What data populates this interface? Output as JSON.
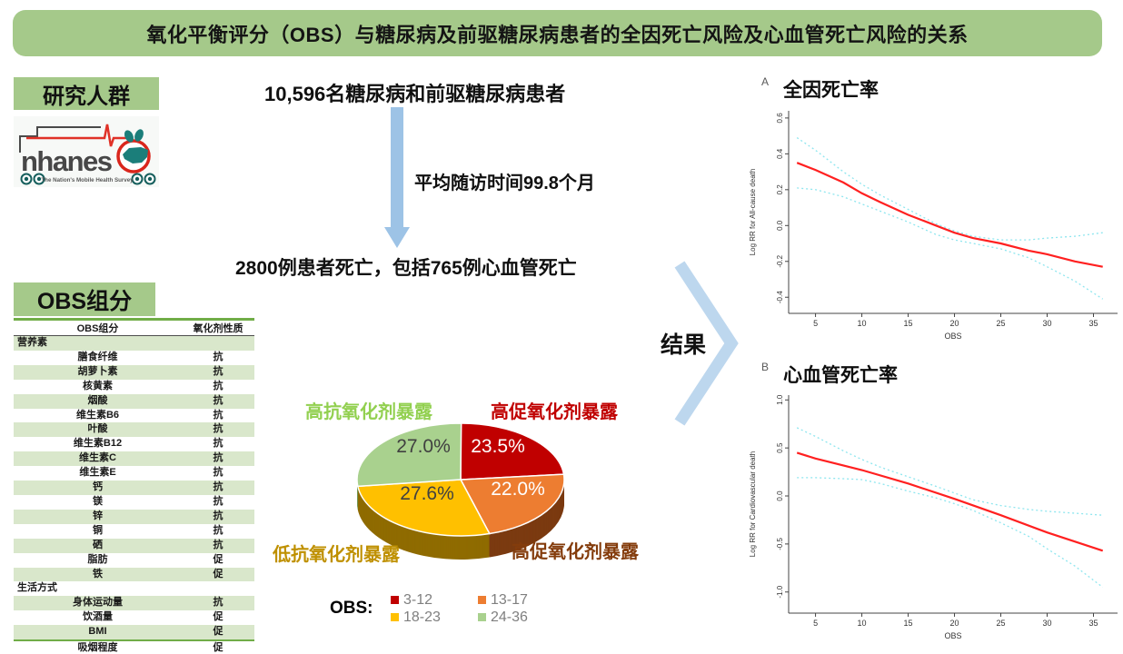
{
  "banner": {
    "title": "氧化平衡评分（OBS）与糖尿病及前驱糖尿病患者的全因死亡风险及心血管死亡风险的关系"
  },
  "colors": {
    "banner_green": "#A5C98A",
    "stripe_green": "#D9E7CB",
    "rule_green": "#70AD47",
    "arrow_blue": "#9DC3E6",
    "chevron_blue": "#BDD7EE",
    "estimate_red": "#FF2020",
    "ci_cyan": "#8EE6EF"
  },
  "left_panel": {
    "study_section_label": "研究人群",
    "obs_section_label": "OBS组分",
    "logo": {
      "name": "nhanes",
      "tagline": "The Nation's Mobile Health Survey"
    },
    "table": {
      "headers": [
        "OBS组分",
        "氧化剂性质"
      ],
      "rows": [
        {
          "label": "营养素",
          "value": "",
          "section": true
        },
        {
          "label": "膳食纤维",
          "value": "抗"
        },
        {
          "label": "胡萝卜素",
          "value": "抗"
        },
        {
          "label": "核黄素",
          "value": "抗"
        },
        {
          "label": "烟酸",
          "value": "抗"
        },
        {
          "label": "维生素B6",
          "value": "抗"
        },
        {
          "label": "叶酸",
          "value": "抗"
        },
        {
          "label": "维生素B12",
          "value": "抗"
        },
        {
          "label": "维生素C",
          "value": "抗"
        },
        {
          "label": "维生素E",
          "value": "抗"
        },
        {
          "label": "钙",
          "value": "抗"
        },
        {
          "label": "镁",
          "value": "抗"
        },
        {
          "label": "锌",
          "value": "抗"
        },
        {
          "label": "铜",
          "value": "抗"
        },
        {
          "label": "硒",
          "value": "抗"
        },
        {
          "label": "脂肪",
          "value": "促"
        },
        {
          "label": "铁",
          "value": "促"
        },
        {
          "label": "生活方式",
          "value": "",
          "section": true
        },
        {
          "label": "身体运动量",
          "value": "抗"
        },
        {
          "label": "饮酒量",
          "value": "促"
        },
        {
          "label": "BMI",
          "value": "促"
        },
        {
          "label": "吸烟程度",
          "value": "促"
        }
      ]
    }
  },
  "flow": {
    "population": "10,596名糖尿病和前驱糖尿病患者",
    "followup": "平均随访时间99.8个月",
    "deaths": "2800例患者死亡，包括765例心血管死亡",
    "result_label": "结果"
  },
  "pie_labels": {
    "top_left": {
      "text": "高抗氧化剂暴露",
      "color": "#92D050"
    },
    "top_right": {
      "text": "高促氧化剂暴露",
      "color": "#C00000"
    },
    "bottom_left": {
      "text": "低抗氧化剂暴露",
      "color": "#BF9000"
    },
    "bottom_right": {
      "text": "高促氧化剂暴露",
      "color": "#843C0C"
    }
  },
  "legend": {
    "title": "OBS:",
    "items": [
      {
        "label": "3-12",
        "color": "#C00000"
      },
      {
        "label": "13-17",
        "color": "#ED7D31"
      },
      {
        "label": "18-23",
        "color": "#FFC000"
      },
      {
        "label": "24-36",
        "color": "#A9D18E"
      }
    ]
  },
  "chart_data": [
    {
      "type": "pie",
      "title": "OBS分组占比",
      "legend_title": "OBS:",
      "slices": [
        {
          "label": "高促氧化剂暴露",
          "obs_range": "3-12",
          "value": 23.5,
          "pct_text": "23.5%",
          "color": "#C00000",
          "side_color": "#7F1500",
          "text_color": "#FFFFFF"
        },
        {
          "label": "高促氧化剂暴露",
          "obs_range": "13-17",
          "value": 22.0,
          "pct_text": "22.0%",
          "color": "#ED7D31",
          "side_color": "#7B3A10",
          "text_color": "#FFFFFF"
        },
        {
          "label": "低抗氧化剂暴露",
          "obs_range": "18-23",
          "value": 27.6,
          "pct_text": "27.6%",
          "color": "#FFC000",
          "side_color": "#8F6B00",
          "text_color": "#404040"
        },
        {
          "label": "高抗氧化剂暴露",
          "obs_range": "24-36",
          "value": 27.0,
          "pct_text": "27.0%",
          "color": "#A9D18E",
          "side_color": "#6E9959",
          "text_color": "#404040"
        }
      ]
    },
    {
      "type": "line",
      "panel": "A",
      "title": "全因死亡率",
      "xlabel": "OBS",
      "ylabel": "Log RR for All-cause death",
      "xlim": [
        2.1,
        37.6
      ],
      "ylim": [
        -0.49,
        0.64
      ],
      "xticks": [
        5,
        10,
        15,
        20,
        25,
        30,
        35
      ],
      "yticks": [
        0.6,
        0.4,
        0.2,
        0.0,
        -0.2,
        -0.4
      ],
      "series": [
        {
          "name": "Log RR estimate",
          "color": "#FF2020",
          "dash": "",
          "width": 2.2,
          "x": [
            3,
            5,
            8,
            10,
            12,
            15,
            18,
            20,
            22,
            25,
            28,
            30,
            33,
            36
          ],
          "y": [
            0.35,
            0.31,
            0.24,
            0.18,
            0.13,
            0.06,
            0.0,
            -0.04,
            -0.07,
            -0.1,
            -0.14,
            -0.16,
            -0.2,
            -0.23
          ]
        },
        {
          "name": "95% CI upper",
          "color": "#8EE6EF",
          "dash": "2 3",
          "width": 1.3,
          "x": [
            3,
            5,
            8,
            10,
            12,
            15,
            18,
            20,
            22,
            25,
            28,
            30,
            33,
            36
          ],
          "y": [
            0.49,
            0.42,
            0.3,
            0.23,
            0.17,
            0.09,
            0.01,
            -0.03,
            -0.06,
            -0.08,
            -0.08,
            -0.07,
            -0.06,
            -0.04
          ]
        },
        {
          "name": "95% CI lower",
          "color": "#8EE6EF",
          "dash": "2 3",
          "width": 1.3,
          "x": [
            3,
            5,
            8,
            10,
            12,
            15,
            18,
            20,
            22,
            25,
            28,
            30,
            33,
            36
          ],
          "y": [
            0.21,
            0.2,
            0.16,
            0.12,
            0.08,
            0.02,
            -0.05,
            -0.08,
            -0.1,
            -0.13,
            -0.18,
            -0.23,
            -0.31,
            -0.41
          ]
        }
      ]
    },
    {
      "type": "line",
      "panel": "B",
      "title": "心血管死亡率",
      "xlabel": "OBS",
      "ylabel": "Log RR for Cardiovascular death",
      "xlim": [
        2.1,
        37.6
      ],
      "ylim": [
        -1.22,
        1.05
      ],
      "xticks": [
        5,
        10,
        15,
        20,
        25,
        30,
        35
      ],
      "yticks": [
        1.0,
        0.5,
        0.0,
        -0.5,
        -1.0
      ],
      "series": [
        {
          "name": "Log RR estimate",
          "color": "#FF2020",
          "dash": "",
          "width": 2.2,
          "x": [
            3,
            5,
            10,
            15,
            20,
            25,
            30,
            36
          ],
          "y": [
            0.45,
            0.39,
            0.27,
            0.13,
            -0.03,
            -0.2,
            -0.38,
            -0.57
          ]
        },
        {
          "name": "95% CI upper",
          "color": "#8EE6EF",
          "dash": "2 3",
          "width": 1.3,
          "x": [
            3,
            5,
            8,
            10,
            12,
            15,
            18,
            20,
            22,
            25,
            28,
            30,
            33,
            36
          ],
          "y": [
            0.71,
            0.62,
            0.47,
            0.38,
            0.3,
            0.2,
            0.1,
            0.03,
            -0.04,
            -0.1,
            -0.14,
            -0.16,
            -0.18,
            -0.2
          ]
        },
        {
          "name": "95% CI lower",
          "color": "#8EE6EF",
          "dash": "2 3",
          "width": 1.3,
          "x": [
            3,
            5,
            8,
            10,
            12,
            15,
            18,
            20,
            22,
            25,
            28,
            30,
            33,
            36
          ],
          "y": [
            0.19,
            0.19,
            0.18,
            0.17,
            0.13,
            0.05,
            -0.02,
            -0.08,
            -0.15,
            -0.28,
            -0.42,
            -0.55,
            -0.73,
            -0.95
          ]
        }
      ]
    }
  ]
}
